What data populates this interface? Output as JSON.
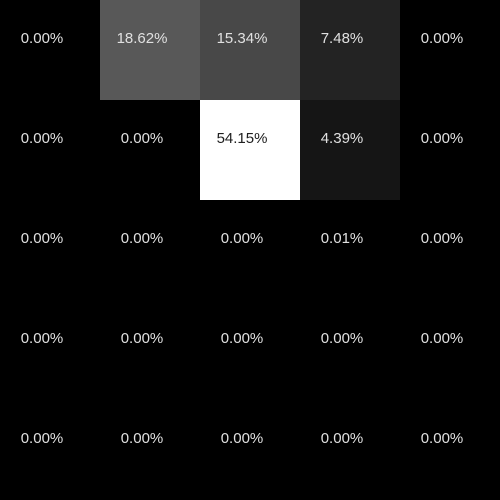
{
  "chart_data": {
    "type": "heatmap",
    "title": "",
    "xlabel": "",
    "ylabel": "",
    "rows": 5,
    "cols": 5,
    "colormap": "grayscale (black low, white high)",
    "vmin": 0,
    "vmax": 54.15,
    "values": [
      [
        0.0,
        18.62,
        15.34,
        7.48,
        0.0
      ],
      [
        0.0,
        0.0,
        54.15,
        4.39,
        0.0
      ],
      [
        0.0,
        0.0,
        0.0,
        0.01,
        0.0
      ],
      [
        0.0,
        0.0,
        0.0,
        0.0,
        0.0
      ],
      [
        0.0,
        0.0,
        0.0,
        0.0,
        0.0
      ]
    ],
    "labels": [
      [
        "0.00%",
        "18.62%",
        "15.34%",
        "7.48%",
        "0.00%"
      ],
      [
        "0.00%",
        "0.00%",
        "54.15%",
        "4.39%",
        "0.00%"
      ],
      [
        "0.00%",
        "0.00%",
        "0.00%",
        "0.01%",
        "0.00%"
      ],
      [
        "0.00%",
        "0.00%",
        "0.00%",
        "0.00%",
        "0.00%"
      ],
      [
        "0.00%",
        "0.00%",
        "0.00%",
        "0.00%",
        "0.00%"
      ]
    ],
    "background_color": "#000000",
    "light_text_color": "#e0e0e0",
    "dark_text_color": "#202020"
  }
}
